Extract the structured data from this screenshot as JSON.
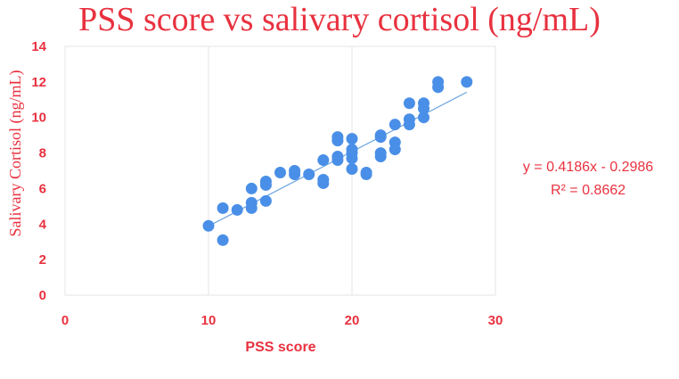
{
  "chart_data": {
    "type": "scatter",
    "title": "PSS score vs salivary cortisol (ng/mL)",
    "xlabel": "PSS score",
    "ylabel": "Salivary Cortisol (ng/mL)",
    "xlim": [
      0,
      30
    ],
    "ylim": [
      0,
      14
    ],
    "xticks": [
      "0",
      "10",
      "20",
      "30"
    ],
    "yticks": [
      "0",
      "2",
      "4",
      "6",
      "8",
      "10",
      "12",
      "14"
    ],
    "grid": "vertical",
    "marker_color": "#4a8fe7",
    "trendline_color": "#6aa5e0",
    "text_color": "#e8313f",
    "trendline": {
      "slope": 0.4186,
      "intercept": -0.2986,
      "x_range": [
        10,
        28
      ]
    },
    "equation": "y = 0.4186x - 0.2986",
    "r_squared": "R² = 0.8662",
    "points": [
      {
        "x": 10,
        "y": 3.9
      },
      {
        "x": 11,
        "y": 3.1
      },
      {
        "x": 11,
        "y": 4.9
      },
      {
        "x": 12,
        "y": 4.8
      },
      {
        "x": 13,
        "y": 4.9
      },
      {
        "x": 13,
        "y": 5.2
      },
      {
        "x": 13,
        "y": 6.0
      },
      {
        "x": 14,
        "y": 5.3
      },
      {
        "x": 14,
        "y": 6.2
      },
      {
        "x": 14,
        "y": 6.4
      },
      {
        "x": 15,
        "y": 6.9
      },
      {
        "x": 16,
        "y": 6.8
      },
      {
        "x": 16,
        "y": 7.0
      },
      {
        "x": 17,
        "y": 6.8
      },
      {
        "x": 18,
        "y": 6.3
      },
      {
        "x": 18,
        "y": 6.5
      },
      {
        "x": 18,
        "y": 7.6
      },
      {
        "x": 19,
        "y": 7.6
      },
      {
        "x": 19,
        "y": 7.8
      },
      {
        "x": 19,
        "y": 8.7
      },
      {
        "x": 19,
        "y": 8.9
      },
      {
        "x": 20,
        "y": 7.1
      },
      {
        "x": 20,
        "y": 7.7
      },
      {
        "x": 20,
        "y": 8.0
      },
      {
        "x": 20,
        "y": 8.2
      },
      {
        "x": 20,
        "y": 8.8
      },
      {
        "x": 21,
        "y": 6.8
      },
      {
        "x": 21,
        "y": 6.9
      },
      {
        "x": 22,
        "y": 7.8
      },
      {
        "x": 22,
        "y": 8.0
      },
      {
        "x": 22,
        "y": 8.9
      },
      {
        "x": 22,
        "y": 9.0
      },
      {
        "x": 23,
        "y": 8.2
      },
      {
        "x": 23,
        "y": 8.6
      },
      {
        "x": 23,
        "y": 9.6
      },
      {
        "x": 24,
        "y": 9.6
      },
      {
        "x": 24,
        "y": 9.9
      },
      {
        "x": 24,
        "y": 10.8
      },
      {
        "x": 25,
        "y": 10.0
      },
      {
        "x": 25,
        "y": 10.5
      },
      {
        "x": 25,
        "y": 10.8
      },
      {
        "x": 26,
        "y": 11.7
      },
      {
        "x": 26,
        "y": 12.0
      },
      {
        "x": 28,
        "y": 12.0
      }
    ]
  }
}
